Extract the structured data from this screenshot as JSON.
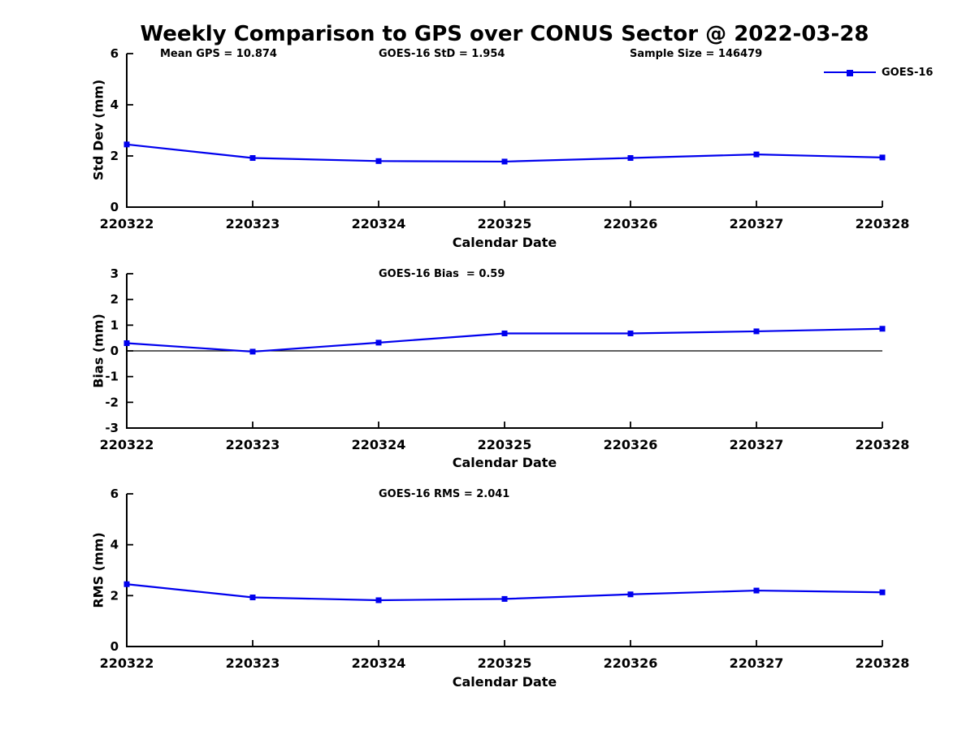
{
  "title": "Weekly Comparison to GPS over CONUS Sector @ 2022-03-28",
  "annotations": {
    "mean_gps": "Mean GPS = 10.874",
    "goes_std": "GOES-16 StD = 1.954",
    "sample_size": "Sample Size = 146479"
  },
  "legend": {
    "label": "GOES-16",
    "color": "#0000EE",
    "marker": "filled-square"
  },
  "chart_data": [
    {
      "type": "line",
      "series_name": "GOES-16",
      "ylabel": "Std Dev (mm)",
      "xlabel": "Calendar Date",
      "categories": [
        "220322",
        "220323",
        "220324",
        "220325",
        "220326",
        "220327",
        "220328"
      ],
      "values": [
        2.45,
        1.92,
        1.8,
        1.78,
        1.92,
        2.06,
        1.94
      ],
      "ylim": [
        0,
        6
      ],
      "yticks": [
        0,
        2,
        4,
        6
      ],
      "line_color": "#0000EE",
      "marker": "square",
      "grid": false,
      "legend_position": "top-right",
      "zero_line": false
    },
    {
      "type": "line",
      "series_name": "GOES-16",
      "annotation": "GOES-16 Bias  = 0.59",
      "ylabel": "Bias (mm)",
      "xlabel": "Calendar Date",
      "categories": [
        "220322",
        "220323",
        "220324",
        "220325",
        "220326",
        "220327",
        "220328"
      ],
      "values": [
        0.3,
        -0.03,
        0.32,
        0.68,
        0.68,
        0.76,
        0.86
      ],
      "ylim": [
        -3,
        3
      ],
      "yticks": [
        -3,
        -2,
        -1,
        0,
        1,
        2,
        3
      ],
      "line_color": "#0000EE",
      "marker": "square",
      "grid": false,
      "zero_line": true
    },
    {
      "type": "line",
      "series_name": "GOES-16",
      "annotation": "GOES-16 RMS = 2.041",
      "ylabel": "RMS (mm)",
      "xlabel": "Calendar Date",
      "categories": [
        "220322",
        "220323",
        "220324",
        "220325",
        "220326",
        "220327",
        "220328"
      ],
      "values": [
        2.45,
        1.93,
        1.82,
        1.87,
        2.05,
        2.2,
        2.13
      ],
      "ylim": [
        0,
        6
      ],
      "yticks": [
        0,
        2,
        4,
        6
      ],
      "line_color": "#0000EE",
      "marker": "square",
      "grid": false,
      "zero_line": false
    }
  ]
}
